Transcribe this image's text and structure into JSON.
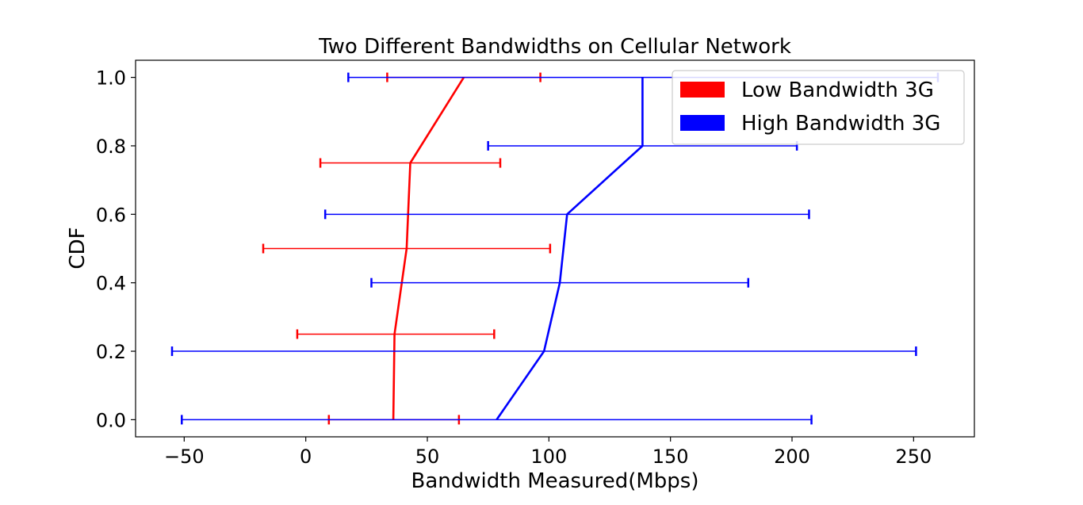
{
  "chart_data": {
    "type": "line",
    "title": "Two Different Bandwidths on Cellular Network",
    "xlabel": "Bandwidth Measured(Mbps)",
    "ylabel": "CDF",
    "xlim": [
      -70,
      275
    ],
    "ylim": [
      -0.05,
      1.05
    ],
    "xticks": [
      -50,
      0,
      50,
      100,
      150,
      200,
      250
    ],
    "xtick_labels": [
      "−50",
      "0",
      "50",
      "100",
      "150",
      "200",
      "250"
    ],
    "yticks": [
      0.0,
      0.2,
      0.4,
      0.6,
      0.8,
      1.0
    ],
    "ytick_labels": [
      "0.0",
      "0.2",
      "0.4",
      "0.6",
      "0.8",
      "1.0"
    ],
    "grid": false,
    "legend_position": "top-right",
    "series": [
      {
        "name": "Low Bandwidth 3G",
        "color": "#ff0000",
        "points": [
          {
            "x": 36,
            "y": 0.0
          },
          {
            "x": 36.5,
            "y": 0.25
          },
          {
            "x": 41.5,
            "y": 0.5
          },
          {
            "x": 43,
            "y": 0.75
          },
          {
            "x": 65,
            "y": 1.0
          }
        ],
        "errorbars": [
          {
            "y": 0.0,
            "low": 9.5,
            "high": 63
          },
          {
            "y": 0.25,
            "low": -3.5,
            "high": 77.5
          },
          {
            "y": 0.5,
            "low": -17.5,
            "high": 100.5
          },
          {
            "y": 0.75,
            "low": 6,
            "high": 80
          },
          {
            "y": 1.0,
            "low": 33.5,
            "high": 96.5
          }
        ]
      },
      {
        "name": "High Bandwidth 3G",
        "color": "#0000ff",
        "points": [
          {
            "x": 78.5,
            "y": 0.0
          },
          {
            "x": 98,
            "y": 0.2
          },
          {
            "x": 104.5,
            "y": 0.4
          },
          {
            "x": 107.5,
            "y": 0.6
          },
          {
            "x": 138.5,
            "y": 0.8
          },
          {
            "x": 138.5,
            "y": 1.0
          }
        ],
        "errorbars": [
          {
            "y": 0.0,
            "low": -51,
            "high": 208
          },
          {
            "y": 0.2,
            "low": -55,
            "high": 251
          },
          {
            "y": 0.4,
            "low": 27,
            "high": 182
          },
          {
            "y": 0.6,
            "low": 8,
            "high": 207
          },
          {
            "y": 0.8,
            "low": 75,
            "high": 202
          },
          {
            "y": 1.0,
            "low": 17.5,
            "high": 260
          }
        ]
      }
    ]
  }
}
